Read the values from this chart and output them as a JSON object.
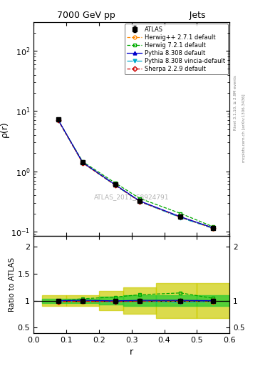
{
  "title": "7000 GeV pp",
  "title_right": "Jets",
  "xlabel": "r",
  "ylabel_main": "ρ(r)",
  "ylabel_ratio": "Ratio to ATLAS",
  "watermark": "ATLAS_2011_S8924791",
  "rivet_label": "Rivet 3.1.10, ≥ 2.9M events",
  "mcplots_label": "mcplots.cern.ch [arXiv:1306.3436]",
  "r_values": [
    0.075,
    0.15,
    0.25,
    0.325,
    0.45,
    0.55
  ],
  "atlas_y": [
    7.2,
    1.4,
    0.6,
    0.32,
    0.175,
    0.115
  ],
  "atlas_yerr_low": [
    0.3,
    0.07,
    0.03,
    0.015,
    0.01,
    0.006
  ],
  "atlas_yerr_high": [
    0.3,
    0.07,
    0.03,
    0.015,
    0.01,
    0.006
  ],
  "herwig271_y": [
    7.0,
    1.38,
    0.585,
    0.315,
    0.172,
    0.112
  ],
  "herwig721_y": [
    7.15,
    1.45,
    0.64,
    0.355,
    0.2,
    0.12
  ],
  "pythia8308_y": [
    7.2,
    1.41,
    0.598,
    0.322,
    0.176,
    0.115
  ],
  "pythia8308v_y": [
    7.1,
    1.39,
    0.585,
    0.315,
    0.17,
    0.113
  ],
  "sherpa229_y": [
    7.1,
    1.385,
    0.592,
    0.317,
    0.175,
    0.115
  ],
  "ratio_herwig271": [
    0.972,
    0.986,
    0.975,
    0.984,
    0.983,
    0.974
  ],
  "ratio_herwig721": [
    0.993,
    1.036,
    1.067,
    1.109,
    1.143,
    1.043
  ],
  "ratio_pythia8308": [
    1.0,
    1.007,
    0.997,
    1.006,
    1.006,
    1.0
  ],
  "ratio_pythia8308v": [
    0.986,
    0.993,
    0.975,
    0.984,
    0.971,
    0.983
  ],
  "ratio_sherpa229": [
    0.986,
    0.989,
    0.987,
    0.991,
    1.0,
    1.0
  ],
  "band_r_edges": [
    0.025,
    0.1,
    0.2,
    0.275,
    0.375,
    0.5,
    0.6
  ],
  "low_outer": [
    0.9,
    0.9,
    0.82,
    0.75,
    0.68,
    0.68
  ],
  "high_outer": [
    1.1,
    1.1,
    1.18,
    1.25,
    1.32,
    1.32
  ],
  "low_inner": [
    0.96,
    0.96,
    0.93,
    0.9,
    0.9,
    0.9
  ],
  "high_inner": [
    1.04,
    1.04,
    1.07,
    1.1,
    1.1,
    1.1
  ],
  "atlas_band_color_inner": "#33cc33",
  "atlas_band_color_outer": "#cccc00",
  "color_atlas": "#000000",
  "color_herwig271": "#ff8800",
  "color_herwig721": "#00aa00",
  "color_pythia8308": "#0000cc",
  "color_pythia8308v": "#00aacc",
  "color_sherpa229": "#cc0000",
  "ylim_main": [
    0.085,
    300
  ],
  "ylim_ratio": [
    0.4,
    2.2
  ],
  "xlim": [
    0.0,
    0.6
  ]
}
